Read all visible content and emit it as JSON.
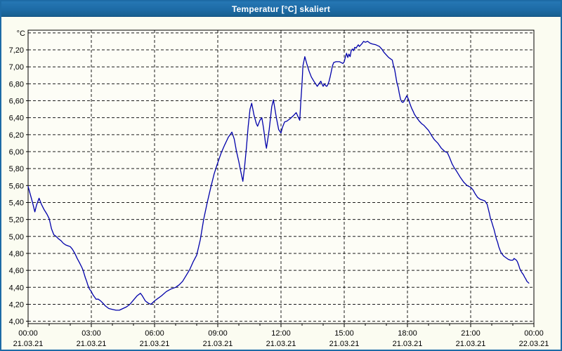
{
  "window": {
    "title": "Temperatur [°C] skaliert"
  },
  "colors": {
    "titlebar": "#1d6ba6",
    "title_text": "#ffffff",
    "window_border": "#1d6ba6",
    "background": "#fbfcf1",
    "plot_background": "#fdfdf6",
    "grid": "#1a1a1a",
    "axis": "#000000",
    "line": "#0000aa",
    "label": "#000000"
  },
  "chart_data": {
    "type": "line",
    "title": "Temperatur [°C] skaliert",
    "unit_label": "°C",
    "xlabel": "",
    "ylabel": "°C",
    "xlim_hours": [
      0,
      24
    ],
    "ylim": [
      3.972,
      7.432
    ],
    "y_grid_min": 4.0,
    "y_grid_max": 7.4,
    "y_grid_step": 0.2,
    "x_minor_step_hours": 1,
    "grid_style": "dashed",
    "legend": "none",
    "y_ticks": [
      {
        "value": 7.2,
        "label": "7,20"
      },
      {
        "value": 7.0,
        "label": "7,00"
      },
      {
        "value": 6.8,
        "label": "6,80"
      },
      {
        "value": 6.6,
        "label": "6,60"
      },
      {
        "value": 6.4,
        "label": "6,40"
      },
      {
        "value": 6.2,
        "label": "6,20"
      },
      {
        "value": 6.0,
        "label": "6,00"
      },
      {
        "value": 5.8,
        "label": "5,80"
      },
      {
        "value": 5.6,
        "label": "5,60"
      },
      {
        "value": 5.4,
        "label": "5,40"
      },
      {
        "value": 5.2,
        "label": "5,20"
      },
      {
        "value": 5.0,
        "label": "5,00"
      },
      {
        "value": 4.8,
        "label": "4,80"
      },
      {
        "value": 4.6,
        "label": "4,60"
      },
      {
        "value": 4.4,
        "label": "4,40"
      },
      {
        "value": 4.2,
        "label": "4,20"
      },
      {
        "value": 4.0,
        "label": "4,00"
      }
    ],
    "x_ticks": [
      {
        "hour": 0,
        "time": "00:00",
        "date": "21.03.21"
      },
      {
        "hour": 3,
        "time": "03:00",
        "date": "21.03.21"
      },
      {
        "hour": 6,
        "time": "06:00",
        "date": "21.03.21"
      },
      {
        "hour": 9,
        "time": "09:00",
        "date": "21.03.21"
      },
      {
        "hour": 12,
        "time": "12:00",
        "date": "21.03.21"
      },
      {
        "hour": 15,
        "time": "15:00",
        "date": "21.03.21"
      },
      {
        "hour": 18,
        "time": "18:00",
        "date": "21.03.21"
      },
      {
        "hour": 21,
        "time": "21:00",
        "date": "21.03.21"
      },
      {
        "hour": 24,
        "time": "00:00",
        "date": "22.03.21"
      }
    ],
    "series": [
      {
        "name": "Temperatur",
        "color": "#0000aa",
        "points": [
          [
            0.0,
            5.59
          ],
          [
            0.1,
            5.5
          ],
          [
            0.2,
            5.41
          ],
          [
            0.32,
            5.29
          ],
          [
            0.4,
            5.37
          ],
          [
            0.52,
            5.45
          ],
          [
            0.63,
            5.38
          ],
          [
            0.75,
            5.32
          ],
          [
            0.9,
            5.26
          ],
          [
            1.0,
            5.21
          ],
          [
            1.11,
            5.09
          ],
          [
            1.22,
            5.02
          ],
          [
            1.33,
            5.0
          ],
          [
            1.45,
            4.97
          ],
          [
            1.56,
            4.95
          ],
          [
            1.67,
            4.92
          ],
          [
            1.78,
            4.9
          ],
          [
            1.89,
            4.89
          ],
          [
            2.0,
            4.88
          ],
          [
            2.1,
            4.85
          ],
          [
            2.22,
            4.8
          ],
          [
            2.33,
            4.74
          ],
          [
            2.44,
            4.69
          ],
          [
            2.56,
            4.63
          ],
          [
            2.61,
            4.6
          ],
          [
            2.67,
            4.55
          ],
          [
            2.72,
            4.51
          ],
          [
            2.78,
            4.47
          ],
          [
            2.83,
            4.43
          ],
          [
            2.89,
            4.39
          ],
          [
            2.94,
            4.37
          ],
          [
            3.0,
            4.35
          ],
          [
            3.06,
            4.32
          ],
          [
            3.11,
            4.3
          ],
          [
            3.17,
            4.28
          ],
          [
            3.22,
            4.26
          ],
          [
            3.33,
            4.26
          ],
          [
            3.44,
            4.24
          ],
          [
            3.56,
            4.21
          ],
          [
            3.67,
            4.18
          ],
          [
            3.83,
            4.15
          ],
          [
            4.0,
            4.14
          ],
          [
            4.17,
            4.13
          ],
          [
            4.33,
            4.13
          ],
          [
            4.5,
            4.15
          ],
          [
            4.67,
            4.17
          ],
          [
            4.83,
            4.2
          ],
          [
            5.0,
            4.25
          ],
          [
            5.17,
            4.3
          ],
          [
            5.33,
            4.33
          ],
          [
            5.42,
            4.3
          ],
          [
            5.56,
            4.24
          ],
          [
            5.72,
            4.21
          ],
          [
            5.83,
            4.2
          ],
          [
            6.0,
            4.24
          ],
          [
            6.11,
            4.26
          ],
          [
            6.33,
            4.3
          ],
          [
            6.56,
            4.35
          ],
          [
            6.78,
            4.38
          ],
          [
            7.0,
            4.4
          ],
          [
            7.17,
            4.43
          ],
          [
            7.33,
            4.47
          ],
          [
            7.5,
            4.54
          ],
          [
            7.67,
            4.61
          ],
          [
            7.83,
            4.7
          ],
          [
            8.0,
            4.78
          ],
          [
            8.17,
            4.96
          ],
          [
            8.33,
            5.2
          ],
          [
            8.5,
            5.4
          ],
          [
            8.67,
            5.58
          ],
          [
            8.83,
            5.74
          ],
          [
            9.0,
            5.87
          ],
          [
            9.17,
            5.99
          ],
          [
            9.33,
            6.08
          ],
          [
            9.5,
            6.17
          ],
          [
            9.67,
            6.23
          ],
          [
            9.78,
            6.15
          ],
          [
            9.89,
            6.0
          ],
          [
            10.0,
            5.88
          ],
          [
            10.08,
            5.78
          ],
          [
            10.19,
            5.65
          ],
          [
            10.28,
            5.84
          ],
          [
            10.36,
            6.05
          ],
          [
            10.44,
            6.29
          ],
          [
            10.53,
            6.5
          ],
          [
            10.61,
            6.57
          ],
          [
            10.72,
            6.43
          ],
          [
            10.83,
            6.33
          ],
          [
            10.89,
            6.3
          ],
          [
            11.0,
            6.37
          ],
          [
            11.09,
            6.4
          ],
          [
            11.17,
            6.28
          ],
          [
            11.26,
            6.11
          ],
          [
            11.31,
            6.04
          ],
          [
            11.44,
            6.26
          ],
          [
            11.56,
            6.53
          ],
          [
            11.64,
            6.61
          ],
          [
            11.78,
            6.4
          ],
          [
            11.89,
            6.26
          ],
          [
            12.0,
            6.22
          ],
          [
            12.06,
            6.28
          ],
          [
            12.17,
            6.35
          ],
          [
            12.28,
            6.36
          ],
          [
            12.44,
            6.39
          ],
          [
            12.61,
            6.43
          ],
          [
            12.72,
            6.46
          ],
          [
            12.83,
            6.4
          ],
          [
            12.89,
            6.37
          ],
          [
            12.94,
            6.59
          ],
          [
            13.0,
            6.81
          ],
          [
            13.04,
            7.01
          ],
          [
            13.13,
            7.12
          ],
          [
            13.22,
            7.04
          ],
          [
            13.33,
            6.95
          ],
          [
            13.44,
            6.88
          ],
          [
            13.56,
            6.83
          ],
          [
            13.67,
            6.79
          ],
          [
            13.72,
            6.77
          ],
          [
            13.83,
            6.81
          ],
          [
            13.89,
            6.83
          ],
          [
            13.94,
            6.8
          ],
          [
            14.0,
            6.77
          ],
          [
            14.06,
            6.8
          ],
          [
            14.11,
            6.78
          ],
          [
            14.17,
            6.77
          ],
          [
            14.22,
            6.79
          ],
          [
            14.28,
            6.83
          ],
          [
            14.33,
            6.88
          ],
          [
            14.39,
            6.95
          ],
          [
            14.44,
            7.01
          ],
          [
            14.5,
            7.05
          ],
          [
            14.61,
            7.06
          ],
          [
            14.78,
            7.06
          ],
          [
            14.94,
            7.04
          ],
          [
            15.0,
            7.06
          ],
          [
            15.06,
            7.12
          ],
          [
            15.11,
            7.16
          ],
          [
            15.17,
            7.11
          ],
          [
            15.22,
            7.15
          ],
          [
            15.28,
            7.12
          ],
          [
            15.33,
            7.19
          ],
          [
            15.39,
            7.21
          ],
          [
            15.44,
            7.19
          ],
          [
            15.5,
            7.23
          ],
          [
            15.56,
            7.22
          ],
          [
            15.61,
            7.24
          ],
          [
            15.67,
            7.26
          ],
          [
            15.72,
            7.24
          ],
          [
            15.83,
            7.27
          ],
          [
            15.92,
            7.3
          ],
          [
            16.0,
            7.29
          ],
          [
            16.11,
            7.3
          ],
          [
            16.22,
            7.28
          ],
          [
            16.33,
            7.27
          ],
          [
            16.5,
            7.26
          ],
          [
            16.67,
            7.24
          ],
          [
            16.78,
            7.21
          ],
          [
            16.89,
            7.17
          ],
          [
            17.0,
            7.14
          ],
          [
            17.11,
            7.11
          ],
          [
            17.22,
            7.09
          ],
          [
            17.28,
            7.08
          ],
          [
            17.33,
            7.02
          ],
          [
            17.39,
            6.97
          ],
          [
            17.44,
            6.9
          ],
          [
            17.5,
            6.81
          ],
          [
            17.56,
            6.76
          ],
          [
            17.61,
            6.69
          ],
          [
            17.67,
            6.62
          ],
          [
            17.72,
            6.59
          ],
          [
            17.78,
            6.58
          ],
          [
            17.83,
            6.59
          ],
          [
            17.89,
            6.62
          ],
          [
            17.97,
            6.66
          ],
          [
            18.06,
            6.61
          ],
          [
            18.11,
            6.57
          ],
          [
            18.17,
            6.53
          ],
          [
            18.22,
            6.5
          ],
          [
            18.28,
            6.47
          ],
          [
            18.33,
            6.44
          ],
          [
            18.44,
            6.4
          ],
          [
            18.56,
            6.36
          ],
          [
            18.67,
            6.33
          ],
          [
            18.78,
            6.31
          ],
          [
            18.89,
            6.28
          ],
          [
            19.0,
            6.25
          ],
          [
            19.17,
            6.18
          ],
          [
            19.28,
            6.14
          ],
          [
            19.44,
            6.1
          ],
          [
            19.61,
            6.04
          ],
          [
            19.78,
            6.0
          ],
          [
            19.89,
            5.99
          ],
          [
            20.0,
            5.93
          ],
          [
            20.11,
            5.86
          ],
          [
            20.22,
            5.81
          ],
          [
            20.33,
            5.77
          ],
          [
            20.5,
            5.7
          ],
          [
            20.67,
            5.64
          ],
          [
            20.83,
            5.6
          ],
          [
            21.0,
            5.58
          ],
          [
            21.11,
            5.55
          ],
          [
            21.22,
            5.5
          ],
          [
            21.33,
            5.46
          ],
          [
            21.44,
            5.44
          ],
          [
            21.67,
            5.42
          ],
          [
            21.78,
            5.38
          ],
          [
            21.83,
            5.33
          ],
          [
            21.89,
            5.27
          ],
          [
            21.94,
            5.21
          ],
          [
            22.0,
            5.17
          ],
          [
            22.06,
            5.12
          ],
          [
            22.11,
            5.08
          ],
          [
            22.17,
            5.02
          ],
          [
            22.22,
            4.97
          ],
          [
            22.28,
            4.93
          ],
          [
            22.33,
            4.88
          ],
          [
            22.39,
            4.84
          ],
          [
            22.44,
            4.81
          ],
          [
            22.56,
            4.77
          ],
          [
            22.67,
            4.75
          ],
          [
            22.78,
            4.73
          ],
          [
            22.89,
            4.72
          ],
          [
            23.0,
            4.72
          ],
          [
            23.06,
            4.74
          ],
          [
            23.17,
            4.72
          ],
          [
            23.22,
            4.7
          ],
          [
            23.28,
            4.66
          ],
          [
            23.33,
            4.62
          ],
          [
            23.39,
            4.59
          ],
          [
            23.44,
            4.57
          ],
          [
            23.5,
            4.55
          ],
          [
            23.56,
            4.52
          ],
          [
            23.61,
            4.5
          ],
          [
            23.67,
            4.47
          ],
          [
            23.76,
            4.45
          ]
        ]
      }
    ]
  }
}
